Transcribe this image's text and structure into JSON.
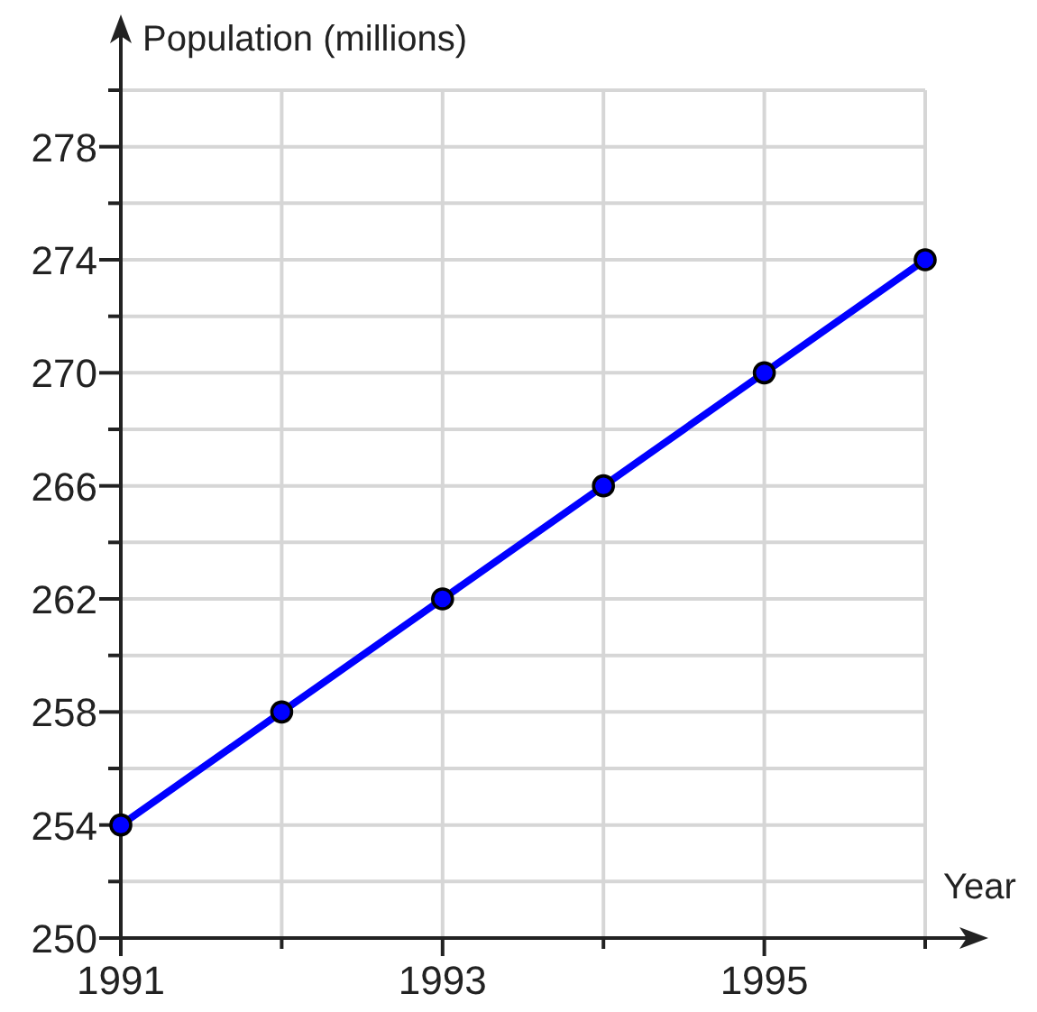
{
  "chart_data": {
    "type": "line",
    "xlabel": "Year",
    "ylabel": "Population (millions)",
    "x": [
      1991,
      1992,
      1993,
      1994,
      1995,
      1996
    ],
    "series": [
      {
        "color": "#0000ff",
        "values": [
          254,
          258,
          262,
          266,
          270,
          274
        ]
      }
    ],
    "xlim": [
      1991,
      1996
    ],
    "xticks": [
      1991,
      {
        "value": 1992,
        "label": null
      },
      1993,
      {
        "value": 1994,
        "label": null
      },
      1995,
      {
        "value": 1996,
        "label": null
      }
    ],
    "ylim": [
      250,
      280
    ],
    "yticks": [
      250,
      {
        "value": 252,
        "label": null
      },
      254,
      {
        "value": 256,
        "label": null
      },
      258,
      {
        "value": 260,
        "label": null
      },
      262,
      {
        "value": 264,
        "label": null
      },
      266,
      {
        "value": 268,
        "label": null
      },
      270,
      {
        "value": 272,
        "label": null
      },
      274,
      {
        "value": 276,
        "label": null
      },
      278,
      {
        "value": 280,
        "label": null
      }
    ],
    "grid": true,
    "marker": "circle",
    "line_style": "solid"
  }
}
